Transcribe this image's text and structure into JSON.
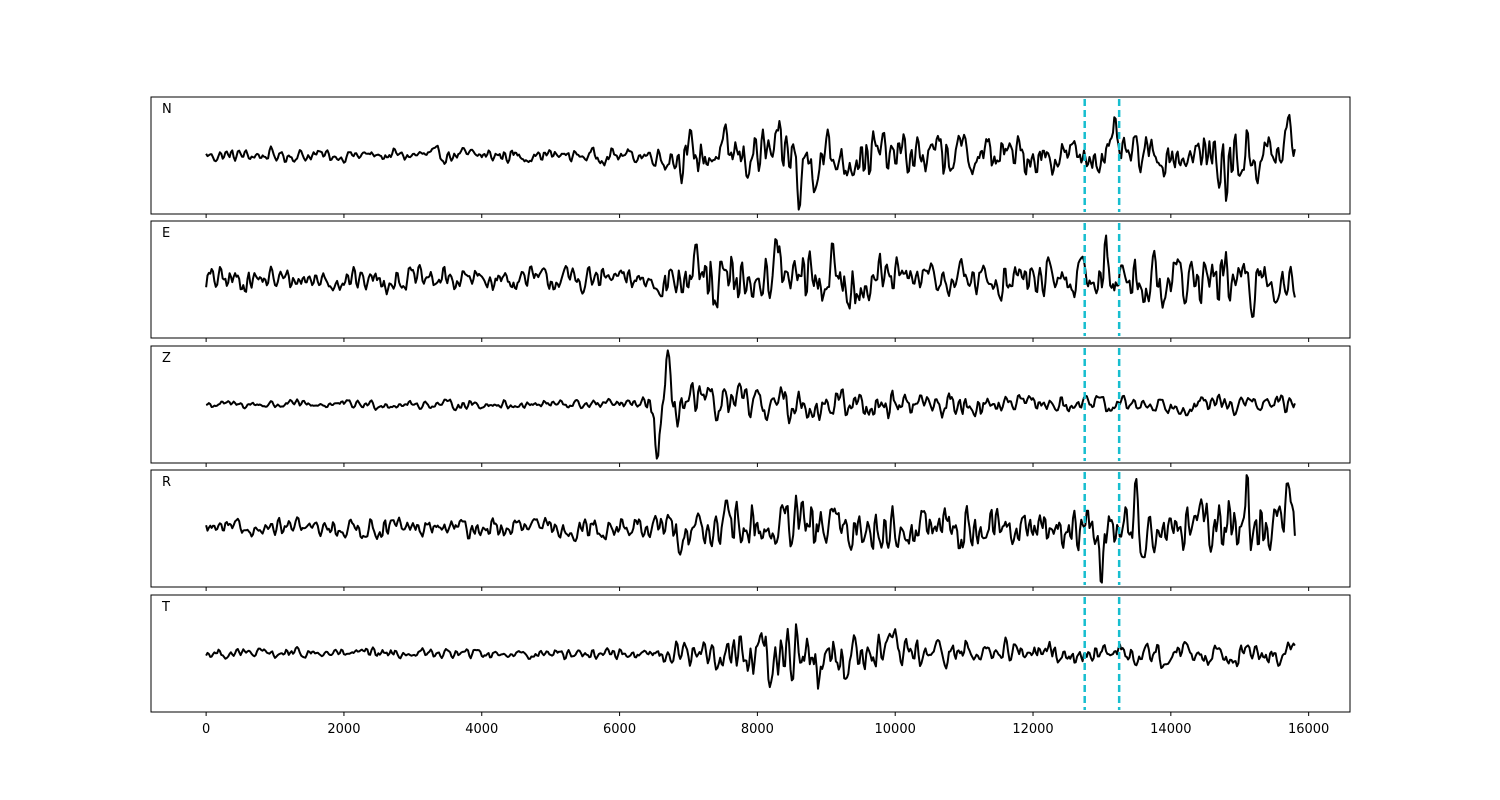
{
  "chart_data": {
    "type": "line",
    "x_range": [
      -800,
      16600
    ],
    "x_ticks": [
      0,
      2000,
      4000,
      6000,
      8000,
      10000,
      12000,
      14000,
      16000
    ],
    "x_tick_labels": [
      "0",
      "2000",
      "4000",
      "6000",
      "8000",
      "10000",
      "12000",
      "14000",
      "16000"
    ],
    "n_samples": 15800,
    "trace_color": "#000000",
    "marker_color": "#17becf",
    "markers": [
      12750,
      13250
    ],
    "grid": false,
    "panels": [
      {
        "label": "N",
        "envelope": [
          [
            0,
            0.18
          ],
          [
            6500,
            0.2
          ],
          [
            6600,
            0.5
          ],
          [
            8500,
            0.75
          ],
          [
            8600,
            0.95
          ],
          [
            9500,
            0.65
          ],
          [
            12000,
            0.55
          ],
          [
            13000,
            0.45
          ],
          [
            14500,
            0.55
          ],
          [
            14800,
            0.85
          ],
          [
            15800,
            0.6
          ]
        ],
        "events": [
          [
            8620,
            -0.95
          ],
          [
            13200,
            0.45
          ],
          [
            14800,
            -0.7
          ],
          [
            15700,
            0.6
          ]
        ]
      },
      {
        "label": "E",
        "envelope": [
          [
            0,
            0.3
          ],
          [
            5000,
            0.3
          ],
          [
            6500,
            0.35
          ],
          [
            6700,
            0.55
          ],
          [
            7500,
            0.8
          ],
          [
            8300,
            0.85
          ],
          [
            9500,
            0.8
          ],
          [
            10000,
            0.45
          ],
          [
            12800,
            0.5
          ],
          [
            13000,
            0.75
          ],
          [
            14000,
            0.6
          ],
          [
            15200,
            0.75
          ],
          [
            15800,
            0.5
          ]
        ],
        "events": [
          [
            7400,
            -0.85
          ],
          [
            8250,
            0.75
          ],
          [
            13050,
            0.8
          ],
          [
            15150,
            -0.85
          ]
        ]
      },
      {
        "label": "Z",
        "envelope": [
          [
            0,
            0.1
          ],
          [
            6300,
            0.12
          ],
          [
            6400,
            0.2
          ],
          [
            6550,
            0.55
          ],
          [
            7000,
            0.45
          ],
          [
            8500,
            0.4
          ],
          [
            10200,
            0.35
          ],
          [
            12000,
            0.2
          ],
          [
            15800,
            0.22
          ]
        ],
        "events": [
          [
            6550,
            -1.2
          ],
          [
            6700,
            0.55
          ]
        ]
      },
      {
        "label": "R",
        "envelope": [
          [
            0,
            0.18
          ],
          [
            2500,
            0.25
          ],
          [
            6500,
            0.28
          ],
          [
            6700,
            0.5
          ],
          [
            8300,
            0.7
          ],
          [
            9500,
            0.65
          ],
          [
            12500,
            0.45
          ],
          [
            12900,
            0.7
          ],
          [
            14000,
            0.55
          ],
          [
            15000,
            0.8
          ],
          [
            15800,
            0.6
          ]
        ],
        "events": [
          [
            13000,
            -0.85
          ],
          [
            13500,
            0.6
          ],
          [
            15100,
            0.95
          ],
          [
            15700,
            0.75
          ]
        ]
      },
      {
        "label": "T",
        "envelope": [
          [
            0,
            0.12
          ],
          [
            6500,
            0.15
          ],
          [
            6600,
            0.3
          ],
          [
            7500,
            0.45
          ],
          [
            8600,
            0.95
          ],
          [
            9500,
            0.6
          ],
          [
            10500,
            0.4
          ],
          [
            12000,
            0.3
          ],
          [
            15800,
            0.3
          ]
        ],
        "events": [
          [
            8580,
            1.0
          ],
          [
            8620,
            -0.9
          ],
          [
            9300,
            -0.55
          ]
        ]
      }
    ]
  }
}
